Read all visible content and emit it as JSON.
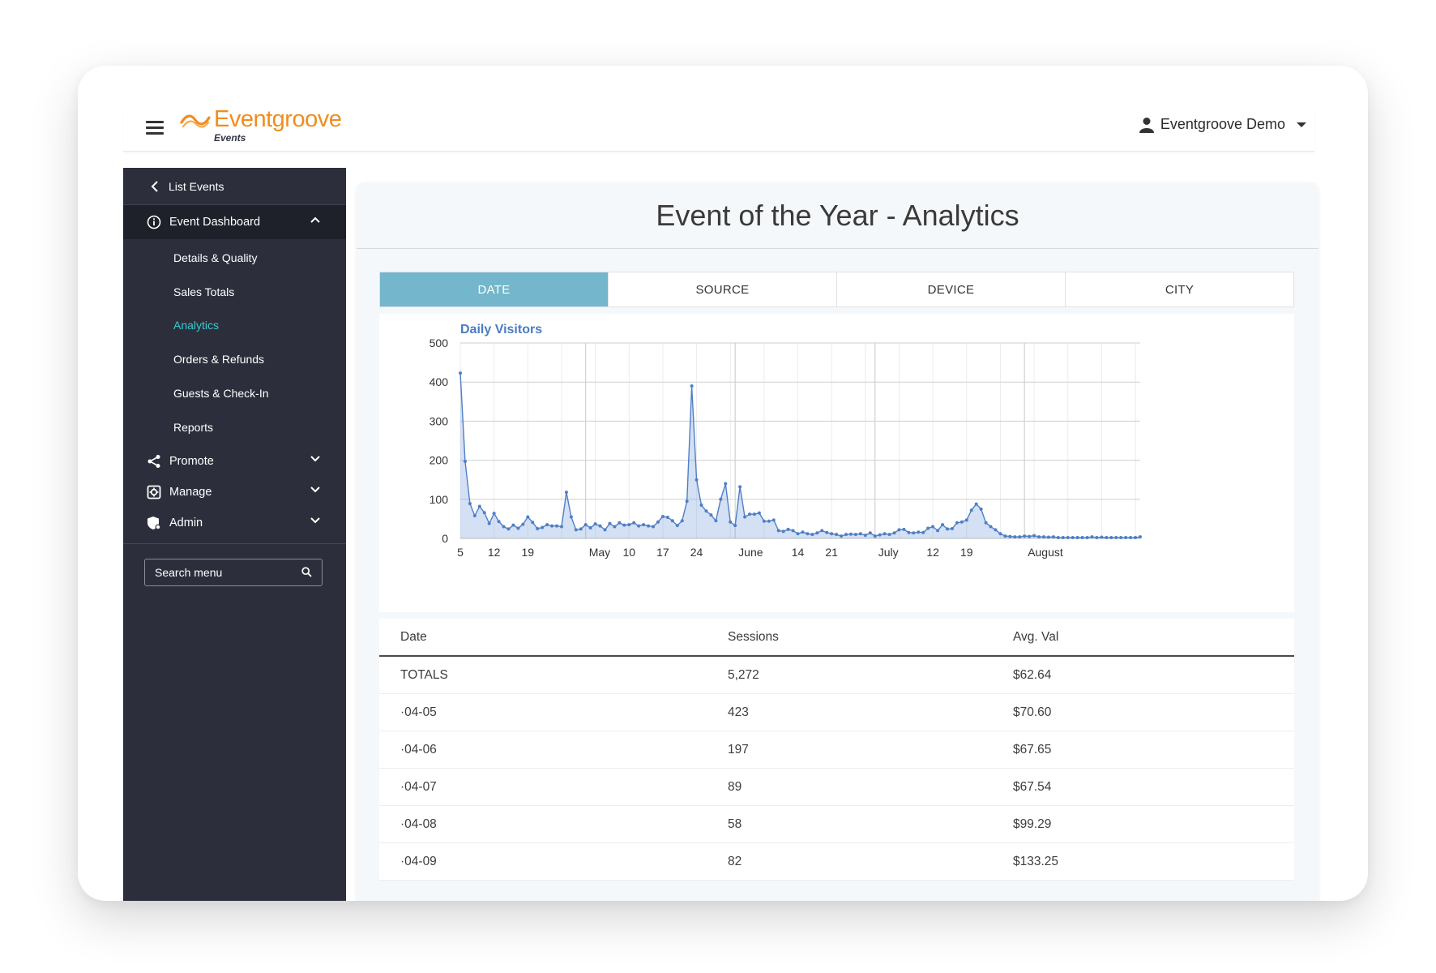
{
  "brand": {
    "name": "Eventgroove",
    "sub": "Events",
    "color": "#f28c1e"
  },
  "user": {
    "name": "Eventgroove Demo"
  },
  "sidebar": {
    "back": "List Events",
    "dashboard": "Event Dashboard",
    "sub_items": [
      "Details & Quality",
      "Sales Totals",
      "Analytics",
      "Orders & Refunds",
      "Guests & Check-In",
      "Reports"
    ],
    "groups": [
      {
        "label": "Promote",
        "icon": "share-icon"
      },
      {
        "label": "Manage",
        "icon": "gear-icon"
      },
      {
        "label": "Admin",
        "icon": "shield-icon"
      }
    ],
    "search_placeholder": "Search menu"
  },
  "page": {
    "title": "Event of the Year - Analytics"
  },
  "tabs": [
    "DATE",
    "SOURCE",
    "DEVICE",
    "CITY"
  ],
  "chart_data": {
    "type": "area",
    "title": "Daily Visitors",
    "ylim": [
      0,
      500
    ],
    "yticks": [
      0,
      100,
      200,
      300,
      400,
      500
    ],
    "xtick_labels": [
      "5",
      "12",
      "19",
      "May",
      "10",
      "17",
      "24",
      "June",
      "14",
      "21",
      "July",
      "12",
      "19",
      "August"
    ],
    "xtick_days": [
      0,
      7,
      14,
      26,
      35,
      42,
      49,
      57,
      70,
      77,
      86,
      98,
      105,
      117
    ],
    "series": [
      {
        "values": [
          423,
          197,
          89,
          58,
          82,
          66,
          38,
          64,
          43,
          30,
          24,
          34,
          26,
          36,
          55,
          41,
          25,
          28,
          35,
          32,
          32,
          30,
          118,
          55,
          22,
          24,
          35,
          27,
          37,
          32,
          22,
          38,
          30,
          40,
          34,
          35,
          40,
          32,
          35,
          32,
          30,
          42,
          56,
          54,
          45,
          33,
          45,
          95,
          390,
          150,
          85,
          70,
          60,
          45,
          100,
          140,
          42,
          33,
          132,
          55,
          62,
          62,
          65,
          44,
          44,
          47,
          20,
          18,
          23,
          20,
          12,
          16,
          12,
          10,
          14,
          20,
          15,
          12,
          10,
          6,
          10,
          11,
          10,
          12,
          8,
          14,
          6,
          9,
          12,
          10,
          14,
          22,
          23,
          15,
          14,
          16,
          15,
          26,
          30,
          20,
          35,
          24,
          25,
          40,
          42,
          47,
          72,
          88,
          75,
          40,
          30,
          22,
          12,
          6,
          5,
          4,
          4,
          6,
          5,
          7,
          4,
          4,
          3,
          4,
          2,
          2,
          2,
          2,
          2,
          2,
          2,
          4,
          2,
          3,
          2,
          2,
          2,
          2,
          2,
          2,
          2,
          4
        ]
      }
    ]
  },
  "table": {
    "headers": [
      "Date",
      "Sessions",
      "Avg. Val"
    ],
    "rows": [
      [
        "TOTALS",
        "5,272",
        "$62.64"
      ],
      [
        "·04-05",
        "423",
        "$70.60"
      ],
      [
        "·04-06",
        "197",
        "$67.65"
      ],
      [
        "·04-07",
        "89",
        "$67.54"
      ],
      [
        "·04-08",
        "58",
        "$99.29"
      ],
      [
        "·04-09",
        "82",
        "$133.25"
      ]
    ]
  }
}
